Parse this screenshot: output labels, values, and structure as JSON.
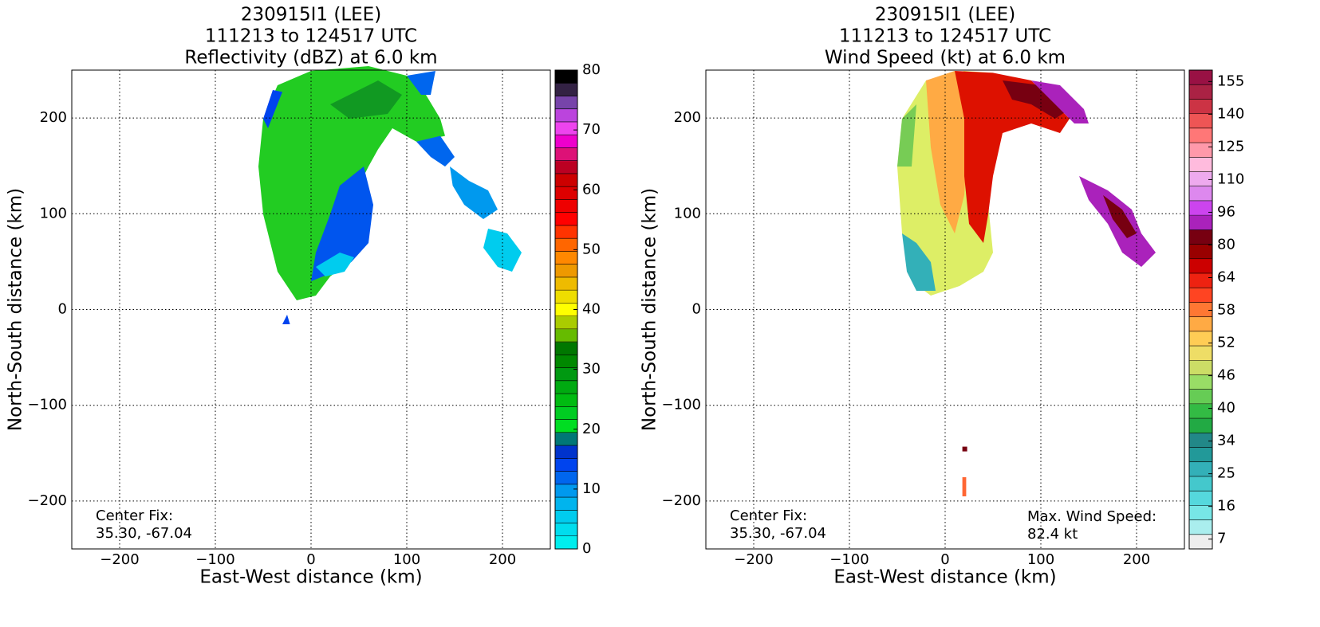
{
  "chart_data": [
    {
      "type": "map",
      "title": [
        "230915I1 (LEE)",
        "111213 to 124517 UTC",
        "Reflectivity (dBZ) at 6.0 km"
      ],
      "xlabel": "East-West distance (km)",
      "ylabel": "North-South distance (km)",
      "xlim": [
        -250,
        250
      ],
      "ylim": [
        -250,
        250
      ],
      "xticks": [
        {
          "value": -200,
          "label": "−200"
        },
        {
          "value": -100,
          "label": "−100"
        },
        0,
        100,
        200
      ],
      "yticks": [
        {
          "value": -200,
          "label": "−200"
        },
        {
          "value": -100,
          "label": "−100"
        },
        0,
        100,
        200
      ],
      "grid": true,
      "colorbar": {
        "lim": [
          0,
          80
        ],
        "ticks": [
          0,
          10,
          20,
          30,
          40,
          50,
          60,
          70,
          80
        ],
        "colors": [
          "#00eeee",
          "#00ddee",
          "#00ccee",
          "#00b4ee",
          "#0099ee",
          "#0066ee",
          "#0044ee",
          "#0033cc",
          "#007777",
          "#00dd22",
          "#00cc22",
          "#00bb11",
          "#00aa11",
          "#009911",
          "#008800",
          "#007700",
          "#66bb00",
          "#aacc00",
          "#ffff00",
          "#eedd00",
          "#eebb00",
          "#ee9900",
          "#ff8800",
          "#ff6600",
          "#ff3300",
          "#ff0000",
          "#ee0000",
          "#dd0000",
          "#cc0000",
          "#bb0022",
          "#dd1177",
          "#ee00cc",
          "#ee44ee",
          "#bb44dd",
          "#7744aa",
          "#332244",
          "#000000"
        ]
      },
      "annotations": {
        "left": [
          "Center Fix:",
          "35.30, -67.04"
        ]
      }
    },
    {
      "type": "map",
      "title": [
        "230915I1 (LEE)",
        "111213 to 124517 UTC",
        "Wind Speed (kt) at 6.0 km"
      ],
      "xlabel": "East-West distance (km)",
      "ylabel": "North-South distance (km)",
      "xlim": [
        -250,
        250
      ],
      "ylim": [
        -250,
        250
      ],
      "xticks": [
        {
          "value": -200,
          "label": "−200"
        },
        {
          "value": -100,
          "label": "−100"
        },
        0,
        100,
        200
      ],
      "yticks": [
        {
          "value": -200,
          "label": "−200"
        },
        {
          "value": -100,
          "label": "−100"
        },
        0,
        100,
        200
      ],
      "grid": true,
      "colorbar": {
        "ticks": [
          7,
          16,
          25,
          34,
          40,
          46,
          52,
          58,
          64,
          80,
          96,
          110,
          125,
          140,
          155
        ],
        "colors": [
          "#eeeeee",
          "#aaeeee",
          "#77e6e6",
          "#55d8dd",
          "#44c8cc",
          "#33b0b8",
          "#229999",
          "#228888",
          "#22aa44",
          "#33bb44",
          "#66cc55",
          "#99dd66",
          "#ccdd66",
          "#eedd66",
          "#ffcc55",
          "#ffaa44",
          "#ff7733",
          "#ff4422",
          "#ee2211",
          "#cc0000",
          "#990000",
          "#770011",
          "#aa22bb",
          "#cc44ee",
          "#dd88ee",
          "#eeaaee",
          "#ffbbdd",
          "#ff99aa",
          "#ff7777",
          "#ee5555",
          "#cc3344",
          "#aa2244",
          "#991144"
        ]
      },
      "annotations": {
        "left": [
          "Center Fix:",
          "35.30, -67.04"
        ],
        "right": [
          "Max. Wind Speed:",
          "82.4 kt"
        ]
      }
    }
  ]
}
